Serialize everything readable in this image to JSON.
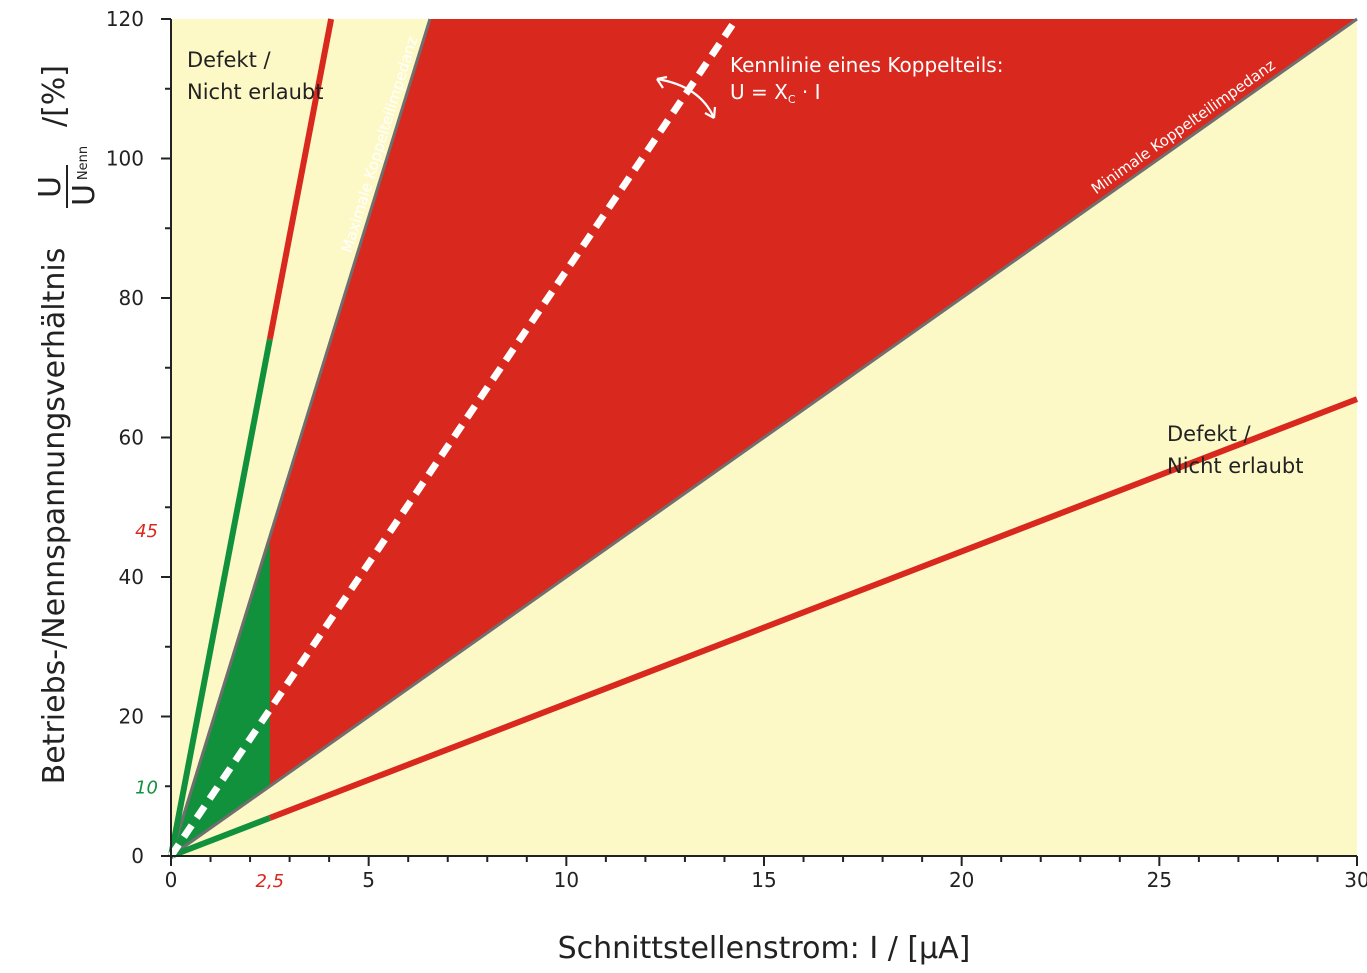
{
  "chart_data": {
    "type": "line",
    "xlabel": "Schnittstellenstrom: I / [µA]",
    "ylabel": {
      "prefix": "Betriebs-/Nennspannungsverhältnis",
      "fraction_numerator": "U",
      "fraction_denominator": "U",
      "fraction_denominator_subscript": "Nenn",
      "suffix": "/[%]"
    },
    "xlim": [
      0,
      30
    ],
    "ylim": [
      0,
      120
    ],
    "x_major_ticks": [
      0,
      5,
      10,
      15,
      20,
      25,
      30
    ],
    "y_major_ticks": [
      0,
      20,
      40,
      60,
      80,
      100,
      120
    ],
    "x_minor_step": 1,
    "y_minor_step": 10,
    "grid": false,
    "colors": {
      "background": "#fdf9c7",
      "forbidden_region": "#d9281e",
      "allowed_region": "#12913d",
      "boundary_gray": "#6f6f6f",
      "defect_line": "#d9281e",
      "limit_green": "#12913d",
      "characteristic": "#ffffff",
      "marker_red": "#d9281e",
      "marker_green": "#12913d"
    },
    "lines": [
      {
        "id": "upper-defect",
        "x": [
          0,
          4.05
        ],
        "y": [
          0,
          120
        ],
        "green_until_x": 2.5
      },
      {
        "id": "max-impedance",
        "x": [
          0,
          6.55
        ],
        "y": [
          0,
          120
        ]
      },
      {
        "id": "characteristic",
        "x": [
          0,
          14.3
        ],
        "y": [
          0,
          120
        ]
      },
      {
        "id": "min-impedance",
        "x": [
          0,
          30
        ],
        "y": [
          0,
          120
        ]
      },
      {
        "id": "lower-defect",
        "x": [
          0,
          30
        ],
        "y": [
          0,
          65.5
        ],
        "green_until_x": 2.5
      }
    ],
    "regions": [
      {
        "id": "forbidden",
        "points": [
          [
            0,
            0
          ],
          [
            6.55,
            120
          ],
          [
            30,
            120
          ]
        ]
      },
      {
        "id": "allowed",
        "points": [
          [
            0,
            0
          ],
          [
            2.5,
            45
          ],
          [
            2.5,
            10
          ]
        ]
      }
    ],
    "markers": {
      "y_45": "45",
      "y_10": "10",
      "x_2_5": "2,5"
    },
    "annotations": {
      "defect_top_line1": "Defekt /",
      "defect_top_line2": "Nicht erlaubt",
      "defect_right_line1": "Defekt /",
      "defect_right_line2": "Nicht erlaubt",
      "characteristic_line1": "Kennlinie eines Koppelteils:",
      "characteristic_line2_prefix": "U = X",
      "characteristic_line2_sub": "C",
      "characteristic_line2_suffix": " · I",
      "max_impedance": "Maximale Koppelteilimpedanz",
      "min_impedance": "Minimale Koppelteilimpedanz"
    }
  }
}
